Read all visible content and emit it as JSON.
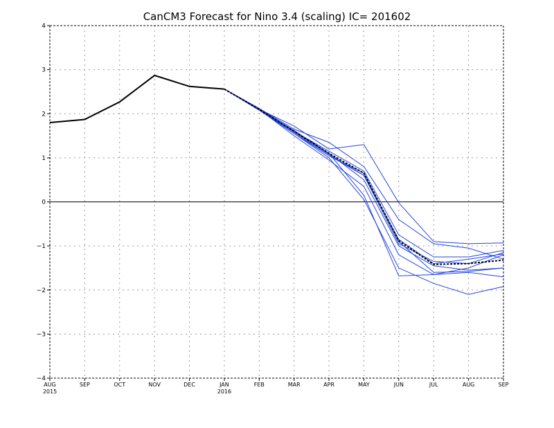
{
  "chart_data": {
    "type": "line",
    "title": "CanCM3 Forecast for Nino 3.4 (scaling) IC= 201602",
    "xlabel": "",
    "ylabel": "",
    "categories": [
      "AUG",
      "SEP",
      "OCT",
      "NOV",
      "DEC",
      "JAN",
      "FEB",
      "MAR",
      "APR",
      "MAY",
      "JUN",
      "JUL",
      "AUG",
      "SEP"
    ],
    "year_labels": [
      "2015",
      "",
      "",
      "",
      "",
      "2016",
      "",
      "",
      "",
      "",
      "",
      "",
      "",
      ""
    ],
    "y_ticks": [
      "4",
      "3",
      "2",
      "1",
      "0",
      "−1",
      "−2",
      "−3",
      "−4"
    ],
    "y_tick_values": [
      4,
      3,
      2,
      1,
      0,
      -1,
      -2,
      -3,
      -4
    ],
    "ylim": [
      -4,
      4
    ],
    "grid": true,
    "zero_line": true,
    "observed": {
      "color": "#000000",
      "style": "solid",
      "x": [
        "AUG",
        "SEP",
        "OCT",
        "NOV",
        "DEC",
        "JAN"
      ],
      "values": [
        1.8,
        1.87,
        2.27,
        2.87,
        2.62,
        2.56
      ]
    },
    "ensemble_mean": {
      "color": "#000000",
      "style": "dashed",
      "x": [
        "JAN",
        "FEB",
        "MAR",
        "APR",
        "MAY",
        "JUN",
        "JUL",
        "AUG",
        "SEP"
      ],
      "values": [
        2.56,
        2.1,
        1.6,
        1.1,
        0.65,
        -0.88,
        -1.42,
        -1.4,
        -1.32
      ]
    },
    "members": {
      "color": "#2244dd",
      "x": [
        "JAN",
        "FEB",
        "MAR",
        "APR",
        "MAY",
        "JUN",
        "JUL",
        "AUG",
        "SEP"
      ],
      "series": [
        {
          "values": [
            2.56,
            2.1,
            1.72,
            1.2,
            1.3,
            -0.02,
            -0.9,
            -0.95,
            -0.93
          ]
        },
        {
          "values": [
            2.56,
            2.12,
            1.65,
            1.35,
            0.8,
            -0.4,
            -0.95,
            -1.05,
            -1.3
          ]
        },
        {
          "values": [
            2.56,
            2.1,
            1.6,
            1.15,
            0.7,
            -0.75,
            -1.25,
            -1.25,
            -1.1
          ]
        },
        {
          "values": [
            2.56,
            2.08,
            1.55,
            1.05,
            0.6,
            -0.85,
            -1.4,
            -1.3,
            -1.18
          ]
        },
        {
          "values": [
            2.56,
            2.1,
            1.62,
            1.1,
            0.5,
            -1.0,
            -1.45,
            -1.55,
            -1.5
          ]
        },
        {
          "values": [
            2.56,
            2.1,
            1.58,
            1.05,
            0.65,
            -0.9,
            -1.6,
            -1.58,
            -1.5
          ]
        },
        {
          "values": [
            2.56,
            2.1,
            1.5,
            0.95,
            0.35,
            -1.2,
            -1.65,
            -1.6,
            -1.7
          ]
        },
        {
          "values": [
            2.56,
            2.12,
            1.6,
            1.1,
            0.15,
            -1.68,
            -1.65,
            -1.5,
            -1.2
          ]
        },
        {
          "values": [
            2.56,
            2.1,
            1.55,
            1.0,
            0.05,
            -1.5,
            -1.85,
            -2.1,
            -1.92
          ]
        },
        {
          "values": [
            2.56,
            2.1,
            1.6,
            1.08,
            0.6,
            -0.95,
            -1.35,
            -1.4,
            -1.15
          ]
        }
      ]
    }
  }
}
